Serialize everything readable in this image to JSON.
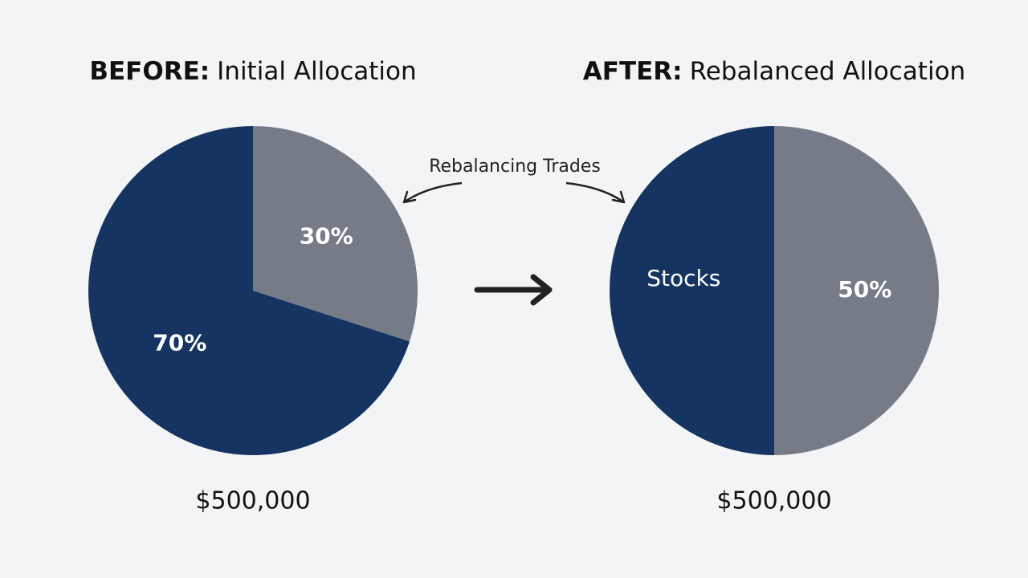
{
  "annotation": "Rebalancing Trades",
  "chart_data": [
    {
      "type": "pie",
      "title_prefix": "BEFORE:",
      "title": "Initial Allocation",
      "categories": [
        null,
        null
      ],
      "values": [
        30,
        70
      ],
      "value_labels": [
        "30%",
        "70%"
      ],
      "colors": [
        "#757c87",
        "#163461"
      ],
      "total": {
        "value": 500000,
        "label": "$500,000"
      }
    },
    {
      "type": "pie",
      "title_prefix": "AFTER:",
      "title": "Rebalanced Allocation",
      "categories": [
        null,
        "Stocks"
      ],
      "values": [
        50,
        50
      ],
      "value_labels": [
        "50%",
        null
      ],
      "colors": [
        "#757c87",
        "#163461"
      ],
      "total": {
        "value": 500000,
        "label": "$500,000"
      }
    }
  ]
}
